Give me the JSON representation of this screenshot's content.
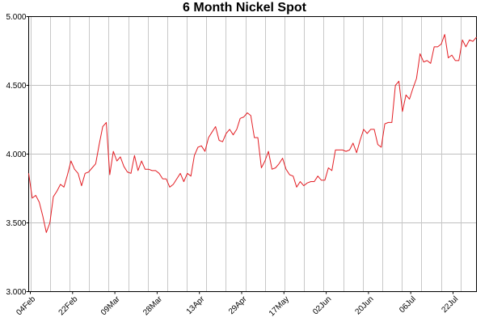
{
  "chart_data": {
    "type": "line",
    "title": "6 Month Nickel Spot",
    "xlabel": "",
    "ylabel": "",
    "grid": true,
    "legend": "none",
    "ylim": [
      3.0,
      5.0
    ],
    "yticks": [
      "3.000",
      "3.500",
      "4.000",
      "4.500",
      "5.000"
    ],
    "xticks": [
      "04Feb",
      "22Feb",
      "09Mar",
      "28Mar",
      "13Apr",
      "29Apr",
      "17May",
      "02Jun",
      "20Jun",
      "06Jul",
      "22Jul"
    ],
    "series": [
      {
        "color": "#e31e24",
        "values": [
          3.86,
          3.68,
          3.7,
          3.65,
          3.55,
          3.43,
          3.5,
          3.69,
          3.73,
          3.78,
          3.76,
          3.85,
          3.95,
          3.89,
          3.86,
          3.77,
          3.86,
          3.87,
          3.9,
          3.93,
          4.07,
          4.2,
          4.23,
          3.85,
          4.02,
          3.95,
          3.98,
          3.91,
          3.87,
          3.86,
          3.99,
          3.88,
          3.95,
          3.89,
          3.89,
          3.88,
          3.88,
          3.86,
          3.82,
          3.82,
          3.76,
          3.78,
          3.82,
          3.86,
          3.8,
          3.86,
          3.84,
          3.99,
          4.05,
          4.06,
          4.02,
          4.12,
          4.16,
          4.2,
          4.1,
          4.09,
          4.15,
          4.18,
          4.14,
          4.18,
          4.26,
          4.27,
          4.3,
          4.28,
          4.12,
          4.12,
          3.9,
          3.95,
          4.02,
          3.89,
          3.9,
          3.93,
          3.97,
          3.89,
          3.85,
          3.84,
          3.76,
          3.8,
          3.77,
          3.79,
          3.8,
          3.8,
          3.84,
          3.81,
          3.81,
          3.9,
          3.88,
          4.03,
          4.03,
          4.03,
          4.02,
          4.03,
          4.08,
          4.01,
          4.1,
          4.18,
          4.15,
          4.18,
          4.18,
          4.07,
          4.05,
          4.22,
          4.23,
          4.23,
          4.5,
          4.53,
          4.31,
          4.43,
          4.4,
          4.48,
          4.55,
          4.73,
          4.67,
          4.68,
          4.66,
          4.78,
          4.78,
          4.8,
          4.87,
          4.7,
          4.72,
          4.68,
          4.68,
          4.83,
          4.78,
          4.83,
          4.82,
          4.85
        ]
      }
    ]
  }
}
